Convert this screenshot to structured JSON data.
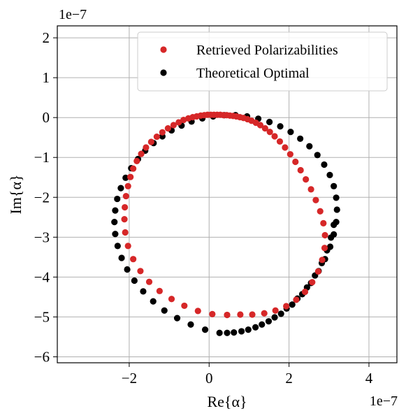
{
  "chart_data": {
    "type": "scatter",
    "title": "",
    "xlabel": "Re{α}",
    "ylabel": "Im{α}",
    "x_offset_text": "1e−7",
    "y_offset_text": "1e−7",
    "xlim": [
      -3.8,
      4.7
    ],
    "ylim": [
      -6.15,
      2.3
    ],
    "x_ticks": [
      -2,
      0,
      2,
      4
    ],
    "x_tick_labels": [
      "−2",
      "0",
      "2",
      "4"
    ],
    "y_ticks": [
      2,
      1,
      0,
      -1,
      -2,
      -3,
      -4,
      -5,
      -6
    ],
    "y_tick_labels": [
      "2",
      "1",
      "0",
      "−1",
      "−2",
      "−3",
      "−4",
      "−5",
      "−6"
    ],
    "grid": true,
    "legend_position": "upper-right",
    "series": [
      {
        "name": "Retrieved Polarizabilities",
        "color": "#d62728",
        "x": [
          0.45,
          0.08,
          -0.28,
          -0.62,
          -0.94,
          -1.24,
          -1.5,
          -1.72,
          -1.9,
          -2.03,
          -2.1,
          -2.12,
          -2.11,
          -2.08,
          -2.03,
          -1.97,
          -1.9,
          -1.81,
          -1.7,
          -1.58,
          -1.45,
          -1.31,
          -1.17,
          -1.03,
          -0.89,
          -0.76,
          -0.64,
          -0.52,
          -0.41,
          -0.31,
          -0.21,
          -0.12,
          -0.04,
          0.04,
          0.12,
          0.2,
          0.28,
          0.36,
          0.44,
          0.52,
          0.6,
          0.68,
          0.77,
          0.86,
          0.96,
          1.06,
          1.17,
          1.28,
          1.4,
          1.52,
          1.64,
          1.77,
          1.9,
          2.03,
          2.16,
          2.29,
          2.42,
          2.55,
          2.67,
          2.78,
          2.86,
          2.9,
          2.89,
          2.83,
          2.73,
          2.58,
          2.4,
          2.18,
          1.93,
          1.66,
          1.38,
          1.08,
          0.78,
          0.45
        ],
        "y": [
          -4.95,
          -4.93,
          -4.85,
          -4.72,
          -4.55,
          -4.35,
          -4.12,
          -3.85,
          -3.55,
          -3.22,
          -2.88,
          -2.55,
          -2.25,
          -1.97,
          -1.72,
          -1.49,
          -1.28,
          -1.09,
          -0.91,
          -0.75,
          -0.61,
          -0.48,
          -0.37,
          -0.27,
          -0.19,
          -0.12,
          -0.06,
          -0.02,
          0.01,
          0.03,
          0.05,
          0.06,
          0.07,
          0.07,
          0.07,
          0.07,
          0.07,
          0.06,
          0.06,
          0.05,
          0.04,
          0.03,
          0.01,
          -0.01,
          -0.04,
          -0.08,
          -0.13,
          -0.19,
          -0.27,
          -0.36,
          -0.47,
          -0.6,
          -0.75,
          -0.92,
          -1.11,
          -1.32,
          -1.55,
          -1.8,
          -2.07,
          -2.35,
          -2.65,
          -2.95,
          -3.27,
          -3.57,
          -3.86,
          -4.13,
          -4.37,
          -4.57,
          -4.73,
          -4.84,
          -4.91,
          -4.94,
          -4.94,
          -4.95
        ]
      },
      {
        "name": "Theoretical Optimal",
        "color": "#000000",
        "x": [
          0.45,
          0.81,
          1.16,
          1.49,
          1.8,
          2.08,
          2.33,
          2.55,
          2.74,
          2.9,
          3.03,
          3.12,
          3.18,
          3.2,
          3.18,
          3.12,
          3.02,
          2.88,
          2.71,
          2.51,
          2.28,
          2.04,
          1.78,
          1.51,
          1.23,
          0.95,
          0.66,
          0.38,
          0.1,
          -0.17,
          -0.44,
          -0.69,
          -0.94,
          -1.17,
          -1.39,
          -1.6,
          -1.78,
          -1.95,
          -2.09,
          -2.21,
          -2.3,
          -2.35,
          -2.37,
          -2.35,
          -2.29,
          -2.19,
          -2.05,
          -1.87,
          -1.65,
          -1.4,
          -1.12,
          -0.8,
          -0.46,
          -0.1,
          0.26,
          0.62,
          0.98,
          1.32,
          1.64,
          1.94,
          2.21,
          2.45,
          2.65,
          2.82,
          2.95,
          3.05,
          3.12
        ],
        "y": [
          -5.4,
          -5.36,
          -5.26,
          -5.11,
          -4.92,
          -4.69,
          -4.43,
          -4.15,
          -3.85,
          -3.55,
          -3.24,
          -2.93,
          -2.62,
          -2.31,
          -2.01,
          -1.72,
          -1.44,
          -1.18,
          -0.94,
          -0.72,
          -0.53,
          -0.36,
          -0.22,
          -0.11,
          -0.03,
          0.03,
          0.06,
          0.06,
          0.03,
          -0.02,
          -0.1,
          -0.2,
          -0.32,
          -0.47,
          -0.64,
          -0.83,
          -1.04,
          -1.27,
          -1.51,
          -1.77,
          -2.04,
          -2.33,
          -2.62,
          -2.92,
          -3.22,
          -3.52,
          -3.81,
          -4.09,
          -4.36,
          -4.61,
          -4.84,
          -5.03,
          -5.19,
          -5.32,
          -5.4,
          -5.39,
          -5.32,
          -5.19,
          -5.01,
          -4.79,
          -4.54,
          -4.26,
          -3.96,
          -3.65,
          -3.33,
          -3.01,
          -2.69
        ]
      }
    ]
  }
}
